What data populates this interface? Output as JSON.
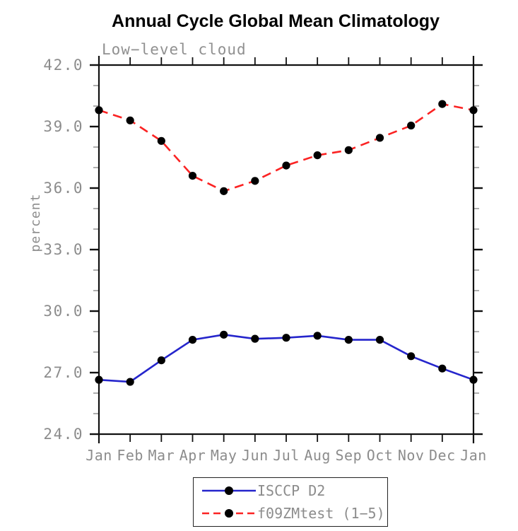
{
  "title": "Annual Cycle Global Mean Climatology",
  "subtitle": "Low−level cloud",
  "chart_data": {
    "type": "line",
    "title": "Annual Cycle Global Mean Climatology",
    "subtitle": "Low−level cloud",
    "xlabel": "",
    "ylabel": "percent",
    "categories": [
      "Jan",
      "Feb",
      "Mar",
      "Apr",
      "May",
      "Jun",
      "Jul",
      "Aug",
      "Sep",
      "Oct",
      "Nov",
      "Dec",
      "Jan"
    ],
    "series": [
      {
        "name": "ISCCP D2",
        "line_style": "solid",
        "color": "#2525cc",
        "marker": "filled-circle",
        "marker_color": "#000000",
        "values": [
          26.65,
          26.55,
          27.6,
          28.6,
          28.85,
          28.65,
          28.7,
          28.8,
          28.6,
          28.6,
          27.8,
          27.2,
          26.65
        ]
      },
      {
        "name": "f09ZMtest (1−5)",
        "line_style": "dashed",
        "color": "#fb2323",
        "marker": "filled-circle",
        "marker_color": "#000000",
        "values": [
          39.8,
          39.3,
          38.3,
          36.6,
          35.85,
          36.35,
          37.1,
          37.6,
          37.85,
          38.45,
          39.05,
          40.1,
          39.8
        ]
      }
    ],
    "ylim": [
      24.0,
      42.0
    ],
    "ytick_major_step": 3.0,
    "ytick_minor_step": 1.0,
    "ytick_labels": [
      "24.0",
      "27.0",
      "30.0",
      "33.0",
      "36.0",
      "39.0",
      "42.0"
    ],
    "grid": false,
    "legend_position": "bottom-center",
    "frame_color": "#111111",
    "tick_label_color": "#8c8c8c"
  }
}
